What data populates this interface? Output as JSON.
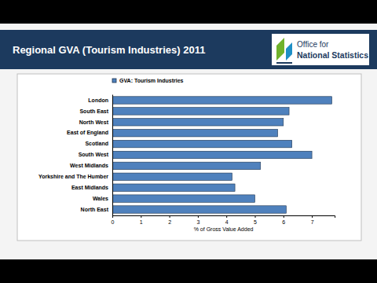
{
  "logo": [
    "Office for",
    "National Statistics"
  ],
  "chart_data": {
    "type": "bar",
    "title": "Regional GVA (Tourism Industries) 2011",
    "orientation": "horizontal",
    "categories": [
      "London",
      "South East",
      "North West",
      "East of England",
      "Scotland",
      "South West",
      "West Midlands",
      "Yorkshire and The Humber",
      "East Midlands",
      "Wales",
      "North East"
    ],
    "series": [
      {
        "name": "GVA: Tourism Industries",
        "color": "#4f81bd",
        "values": [
          7.7,
          6.2,
          6.0,
          5.8,
          6.3,
          7.0,
          5.2,
          4.2,
          4.3,
          5.0,
          6.1
        ]
      }
    ],
    "x_label": "% of Gross Value Added",
    "xlim": [
      0,
      7.8
    ],
    "xticks": [
      0,
      1,
      2,
      3,
      4,
      5,
      6,
      7
    ],
    "grid": false,
    "legend": "top-left"
  }
}
